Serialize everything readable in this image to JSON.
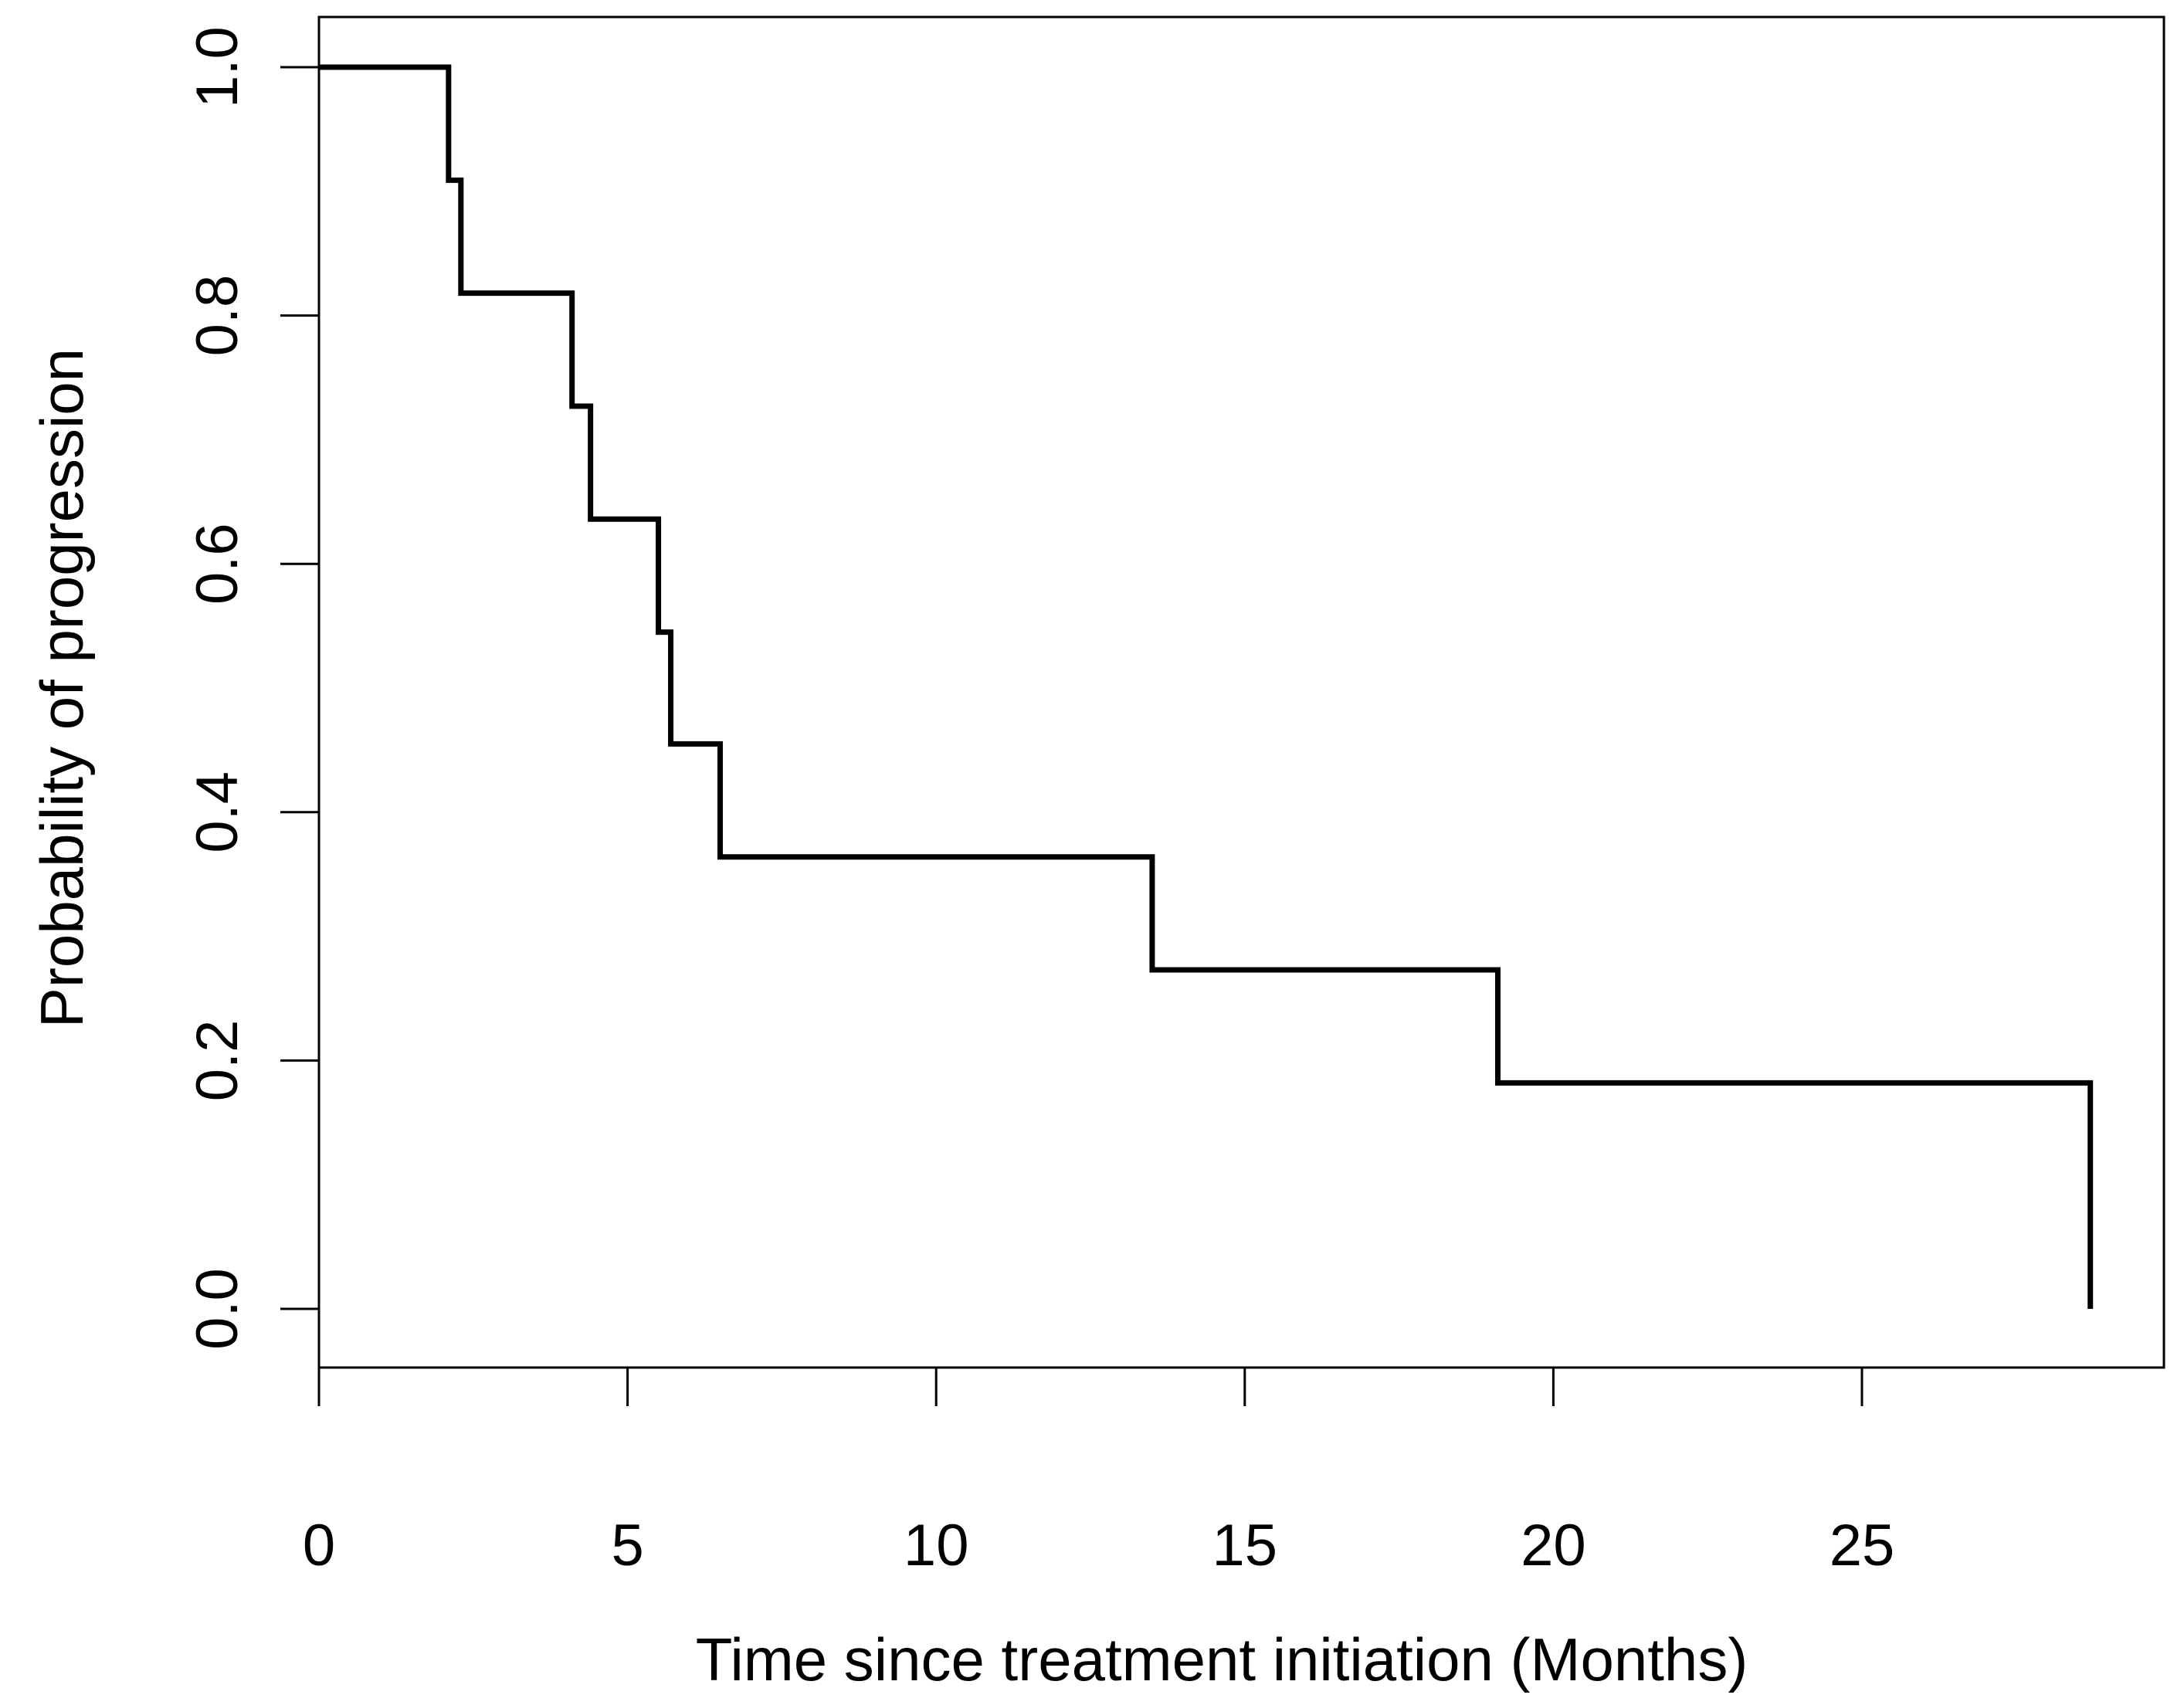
{
  "figure": {
    "background_color": "#ffffff",
    "axis_color": "#000000",
    "curve_color": "#000000"
  },
  "chart_data": {
    "type": "line",
    "subtype": "kaplan-meier-step",
    "title": "",
    "xlabel": "Time since treatment initiation (Months)",
    "ylabel": "Probability of progression",
    "x_tick_labels": [
      "0",
      "5",
      "10",
      "15",
      "20",
      "25"
    ],
    "x_tick_values": [
      0,
      5,
      10,
      15,
      20,
      25
    ],
    "y_tick_labels": [
      "0.0",
      "0.2",
      "0.4",
      "0.6",
      "0.8",
      "1.0"
    ],
    "y_tick_values": [
      0,
      0.2,
      0.4,
      0.6,
      0.8,
      1.0
    ],
    "xlim": [
      0,
      29.9
    ],
    "ylim": [
      0,
      1
    ],
    "grid": false,
    "legend_position": "none",
    "series": [
      {
        "name": "probability-of-progression",
        "step": "post",
        "x": [
          0,
          2.1,
          2.3,
          4.1,
          4.4,
          5.5,
          5.7,
          6.5,
          13.5,
          19.1,
          28.7
        ],
        "y": [
          1.0,
          0.909,
          0.818,
          0.727,
          0.636,
          0.545,
          0.455,
          0.364,
          0.273,
          0.182,
          0.0
        ]
      }
    ]
  }
}
